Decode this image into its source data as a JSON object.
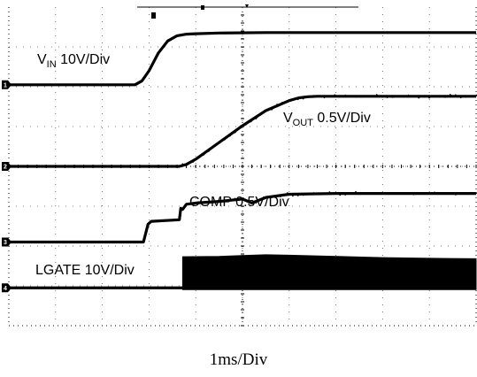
{
  "chart_data": {
    "type": "line",
    "title": "",
    "xlabel": "1ms/Div",
    "ylabel": "",
    "grid": true,
    "divisions": {
      "x": 10,
      "y": 8
    },
    "x_units": "div",
    "xlim": [
      0,
      10
    ],
    "ylim": [
      0,
      8
    ],
    "channel_markers": [
      "1",
      "2",
      "3",
      "4"
    ],
    "series": [
      {
        "name": "VIN 10V/Div",
        "label_main": "V",
        "label_sub": "IN",
        "label_rest": " 10V/Div",
        "marker": "1",
        "color": "#000000",
        "x": [
          0,
          2.7,
          2.85,
          3.0,
          3.2,
          3.4,
          3.6,
          3.8,
          4.0,
          4.5,
          5.5,
          7.0,
          10
        ],
        "y": [
          6.05,
          6.05,
          6.15,
          6.4,
          6.85,
          7.15,
          7.28,
          7.32,
          7.33,
          7.35,
          7.36,
          7.36,
          7.36
        ]
      },
      {
        "name": "VOUT 0.5V/Div",
        "label_main": "V",
        "label_sub": "OUT",
        "label_rest": " 0.5V/Div",
        "marker": "2",
        "color": "#000000",
        "x": [
          0,
          3.65,
          3.8,
          4.0,
          4.5,
          5.0,
          5.5,
          6.0,
          6.2,
          6.4,
          6.6,
          7.0,
          8.0,
          10
        ],
        "y": [
          4.0,
          4.0,
          4.05,
          4.18,
          4.6,
          5.02,
          5.4,
          5.65,
          5.72,
          5.75,
          5.76,
          5.76,
          5.76,
          5.76
        ]
      },
      {
        "name": "COMP 0.5V/Div",
        "label_main": "COMP",
        "label_sub": "",
        "label_rest": " 0.5V/Div",
        "marker": "3",
        "color": "#000000",
        "x": [
          0,
          2.88,
          2.98,
          3.05,
          3.65,
          3.68,
          3.72,
          3.8,
          4.0,
          4.5,
          5.0,
          5.2,
          5.5,
          6.0,
          7.0,
          8.0,
          10
        ],
        "y": [
          2.1,
          2.1,
          2.55,
          2.62,
          2.66,
          2.95,
          2.92,
          3.05,
          3.08,
          3.12,
          3.18,
          3.08,
          3.22,
          3.3,
          3.32,
          3.32,
          3.32
        ]
      },
      {
        "name": "LGATE 10V/Div",
        "label_main": "LGATE",
        "label_sub": "",
        "label_rest": " 10V/Div",
        "marker": "4",
        "color": "#000000",
        "baseline": 0.95,
        "switching_start": 3.72,
        "envelope_x": [
          3.72,
          4.5,
          5.0,
          5.5,
          6.0,
          7.0,
          8.0,
          9.0,
          10
        ],
        "envelope_y": [
          1.73,
          1.74,
          1.76,
          1.78,
          1.77,
          1.74,
          1.71,
          1.69,
          1.68
        ]
      }
    ]
  }
}
